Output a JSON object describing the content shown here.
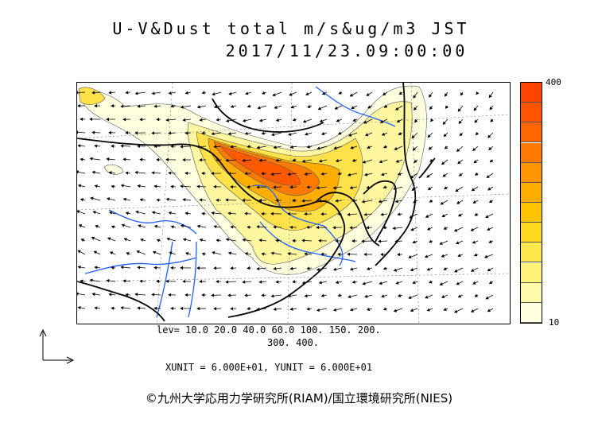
{
  "header": {
    "title_line1": "U-V&Dust total m/s&ug/m3 JST",
    "title_line2": "2017/11/23.09:00:00"
  },
  "colorbar": {
    "max_label": "400",
    "min_label": "10",
    "levels": [
      10,
      20,
      40,
      60,
      100,
      150,
      200,
      300,
      400
    ],
    "colors": [
      "#ffffe0",
      "#fffaa8",
      "#fff27a",
      "#ffe84e",
      "#ffd820",
      "#ffc400",
      "#ffad00",
      "#ff9400",
      "#ff7a00",
      "#ff6600",
      "#ff5500",
      "#ff4400"
    ]
  },
  "legend": {
    "levels_line1": "lev= 10.0 20.0 40.0 60.0 100. 150. 200.",
    "levels_line2": "300. 400.",
    "units_line": "XUNIT = 6.000E+01, YUNIT = 6.000E+01"
  },
  "footer": {
    "copyright": "©九州大学応用力学研究所(RIAM)/国立環境研究所(NIES)"
  },
  "map": {
    "type": "dust concentration with wind vectors",
    "colors": {
      "coast": "#000000",
      "river": "#1f5fff",
      "grid": "#777777"
    }
  }
}
